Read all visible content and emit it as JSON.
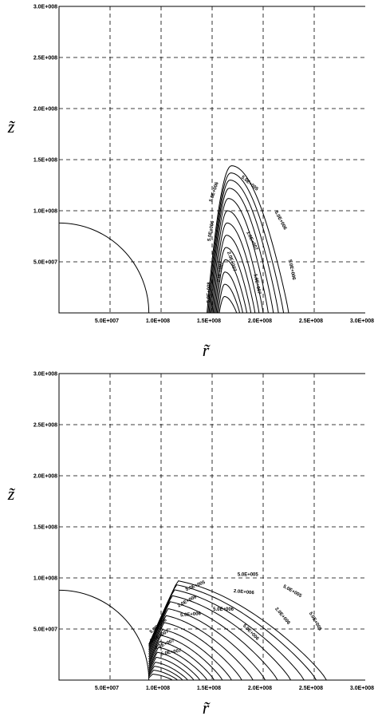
{
  "chart_data": [
    {
      "type": "contour",
      "xlabel": "r̃",
      "ylabel": "z̃",
      "xlim": [
        0,
        300000000
      ],
      "ylim": [
        0,
        300000000
      ],
      "grid": true,
      "xticks": [
        {
          "value": 50000000,
          "label": "5.0E+007"
        },
        {
          "value": 100000000,
          "label": "1.0E+008"
        },
        {
          "value": 150000000,
          "label": "1.5E+008"
        },
        {
          "value": 200000000,
          "label": "2.0E+008"
        },
        {
          "value": 250000000,
          "label": "2.5E+008"
        },
        {
          "value": 300000000,
          "label": "3.0E+008"
        }
      ],
      "yticks": [
        {
          "value": 50000000,
          "label": "5.0E+007"
        },
        {
          "value": 100000000,
          "label": "1.0E+008"
        },
        {
          "value": 150000000,
          "label": "1.5E+008"
        },
        {
          "value": 200000000,
          "label": "2.0E+008"
        },
        {
          "value": 250000000,
          "label": "2.5E+008"
        },
        {
          "value": 300000000,
          "label": "3.0E+008"
        }
      ],
      "body_radius": 88000000,
      "contour_style": "arch",
      "contours": [
        {
          "r_in": 145000000,
          "r_out": 225000000,
          "z_max": 144000000
        },
        {
          "r_in": 146000000,
          "r_out": 220000000,
          "z_max": 137000000
        },
        {
          "r_in": 147000000,
          "r_out": 215000000,
          "z_max": 130000000
        },
        {
          "r_in": 148000000,
          "r_out": 210000000,
          "z_max": 122000000
        },
        {
          "r_in": 149000000,
          "r_out": 205000000,
          "z_max": 112000000
        },
        {
          "r_in": 150000000,
          "r_out": 200000000,
          "z_max": 100000000
        },
        {
          "r_in": 151000000,
          "r_out": 196000000,
          "z_max": 88000000
        },
        {
          "r_in": 152000000,
          "r_out": 192000000,
          "z_max": 76000000
        },
        {
          "r_in": 153000000,
          "r_out": 188000000,
          "z_max": 64000000
        },
        {
          "r_in": 154000000,
          "r_out": 184000000,
          "z_max": 52000000
        },
        {
          "r_in": 155000000,
          "r_out": 180000000,
          "z_max": 40000000
        },
        {
          "r_in": 156000000,
          "r_out": 177000000,
          "z_max": 28000000
        },
        {
          "r_in": 157000000,
          "r_out": 174000000,
          "z_max": 16000000
        }
      ],
      "contour_labels": [
        {
          "text": "5.0E+005",
          "r": 186000000,
          "z": 126000000,
          "rotate": 40
        },
        {
          "text": "5.0E+006",
          "r": 216000000,
          "z": 90000000,
          "rotate": 62
        },
        {
          "text": "5.0E+006",
          "r": 227000000,
          "z": 42000000,
          "rotate": 78
        },
        {
          "text": "5.0E+006",
          "r": 153000000,
          "z": 118000000,
          "rotate": -72
        },
        {
          "text": "5.0E+006",
          "r": 150000000,
          "z": 80000000,
          "rotate": -80
        },
        {
          "text": "1.0E+007",
          "r": 188000000,
          "z": 70000000,
          "rotate": 64
        },
        {
          "text": "1.0E+007",
          "r": 193000000,
          "z": 28000000,
          "rotate": 78
        },
        {
          "text": "2.0E+007",
          "r": 168000000,
          "z": 50000000,
          "rotate": 72
        },
        {
          "text": "2.0E+007",
          "r": 159000000,
          "z": 40000000,
          "rotate": -82
        },
        {
          "text": "5.0E+008",
          "r": 148000000,
          "z": 20000000,
          "rotate": -88
        }
      ]
    },
    {
      "type": "contour",
      "xlabel": "r̃",
      "ylabel": "z̃",
      "xlim": [
        0,
        300000000
      ],
      "ylim": [
        0,
        300000000
      ],
      "grid": true,
      "xticks": [
        {
          "value": 50000000,
          "label": "5.0E+007"
        },
        {
          "value": 100000000,
          "label": "1.0E+008"
        },
        {
          "value": 150000000,
          "label": "1.5E+008"
        },
        {
          "value": 200000000,
          "label": "2.0E+008"
        },
        {
          "value": 250000000,
          "label": "2.5E+008"
        },
        {
          "value": 300000000,
          "label": "3.0E+008"
        }
      ],
      "yticks": [
        {
          "value": 50000000,
          "label": "5.0E+007"
        },
        {
          "value": 100000000,
          "label": "1.0E+008"
        },
        {
          "value": 150000000,
          "label": "1.5E+008"
        },
        {
          "value": 200000000,
          "label": "2.0E+008"
        },
        {
          "value": 250000000,
          "label": "2.5E+008"
        },
        {
          "value": 300000000,
          "label": "3.0E+008"
        }
      ],
      "body_radius": 88000000,
      "contour_style": "dome",
      "contours": [
        {
          "r_in": 88000000,
          "r_out": 262000000,
          "z_max": 100000000
        },
        {
          "r_in": 88000000,
          "r_out": 252000000,
          "z_max": 96000000
        },
        {
          "r_in": 88000000,
          "r_out": 240000000,
          "z_max": 91000000
        },
        {
          "r_in": 88000000,
          "r_out": 227000000,
          "z_max": 85000000
        },
        {
          "r_in": 88000000,
          "r_out": 214000000,
          "z_max": 79000000
        },
        {
          "r_in": 88000000,
          "r_out": 202000000,
          "z_max": 72000000
        },
        {
          "r_in": 88000000,
          "r_out": 190000000,
          "z_max": 65000000
        },
        {
          "r_in": 88000000,
          "r_out": 179000000,
          "z_max": 58000000
        },
        {
          "r_in": 88000000,
          "r_out": 169000000,
          "z_max": 51000000
        },
        {
          "r_in": 88000000,
          "r_out": 160000000,
          "z_max": 45000000
        },
        {
          "r_in": 88000000,
          "r_out": 152000000,
          "z_max": 39000000
        },
        {
          "r_in": 88000000,
          "r_out": 145000000,
          "z_max": 33000000
        },
        {
          "r_in": 88000000,
          "r_out": 138000000,
          "z_max": 28000000
        },
        {
          "r_in": 88000000,
          "r_out": 132000000,
          "z_max": 23000000
        },
        {
          "r_in": 88000000,
          "r_out": 126000000,
          "z_max": 18000000
        },
        {
          "r_in": 88000000,
          "r_out": 121000000,
          "z_max": 14000000
        },
        {
          "r_in": 88000000,
          "r_out": 116000000,
          "z_max": 10000000
        },
        {
          "r_in": 88000000,
          "r_out": 111000000,
          "z_max": 6000000
        }
      ],
      "contour_labels": [
        {
          "text": "5.0E+005",
          "r": 185000000,
          "z": 102000000,
          "rotate": 0
        },
        {
          "text": "5.0E+005",
          "r": 228000000,
          "z": 86000000,
          "rotate": 30
        },
        {
          "text": "5.0E+005",
          "r": 250000000,
          "z": 57000000,
          "rotate": 60
        },
        {
          "text": "5.0E+005",
          "r": 134000000,
          "z": 91000000,
          "rotate": -22
        },
        {
          "text": "2.0E+006",
          "r": 181000000,
          "z": 85000000,
          "rotate": 5
        },
        {
          "text": "2.0E+006",
          "r": 218000000,
          "z": 62000000,
          "rotate": 50
        },
        {
          "text": "2.0E+006",
          "r": 126000000,
          "z": 76000000,
          "rotate": -28
        },
        {
          "text": "5.0E+006",
          "r": 129000000,
          "z": 63000000,
          "rotate": -5
        },
        {
          "text": "5.0E+006",
          "r": 161000000,
          "z": 68000000,
          "rotate": 0
        },
        {
          "text": "5.0E+006",
          "r": 187000000,
          "z": 46000000,
          "rotate": 45
        },
        {
          "text": "5.0E+006",
          "r": 98000000,
          "z": 52000000,
          "rotate": -40
        },
        {
          "text": "5.0E+007",
          "r": 99000000,
          "z": 42000000,
          "rotate": -30
        },
        {
          "text": "2.0E+007",
          "r": 104000000,
          "z": 34000000,
          "rotate": -22
        },
        {
          "text": "5.0E+007",
          "r": 110000000,
          "z": 26000000,
          "rotate": -10
        }
      ]
    }
  ]
}
